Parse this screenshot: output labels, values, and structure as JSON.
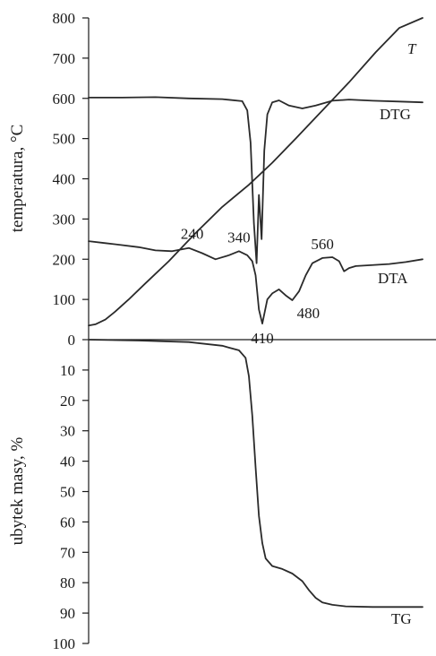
{
  "chart_data": [
    {
      "type": "line",
      "panel": "top",
      "ylabel": "temperatura, °C",
      "xlabel": "",
      "title": "",
      "ylim": [
        0,
        800
      ],
      "yticks": [
        0,
        100,
        200,
        300,
        400,
        500,
        600,
        700,
        800
      ],
      "x_axis_ticks_shown": false,
      "grid": false,
      "series": [
        {
          "name": "T",
          "label_italic": true,
          "x": [
            0,
            2,
            5,
            8,
            12,
            17,
            24,
            32,
            40,
            48,
            55,
            62,
            70,
            78,
            86,
            93,
            100
          ],
          "values": [
            35,
            38,
            50,
            70,
            100,
            140,
            195,
            265,
            330,
            385,
            440,
            500,
            570,
            640,
            715,
            775,
            800
          ]
        },
        {
          "name": "DTG",
          "x": [
            0,
            10,
            20,
            30,
            40,
            46,
            47.5,
            48.5,
            49.5,
            50.3,
            51,
            51.8,
            52.6,
            53.5,
            55,
            57,
            60,
            64,
            68,
            73,
            78,
            85,
            93,
            100
          ],
          "values": [
            602,
            602,
            603,
            600,
            598,
            593,
            570,
            490,
            290,
            190,
            360,
            250,
            470,
            560,
            590,
            595,
            582,
            575,
            582,
            594,
            597,
            594,
            592,
            590
          ]
        },
        {
          "name": "DTA",
          "x": [
            0,
            5,
            10,
            15,
            20,
            25,
            30,
            34,
            38,
            42,
            45,
            47.5,
            49,
            50,
            51,
            52,
            53.5,
            55,
            57,
            59,
            61,
            63,
            65,
            67,
            70,
            73,
            75,
            76.5,
            78,
            80,
            84,
            90,
            95,
            100
          ],
          "values": [
            245,
            240,
            235,
            230,
            222,
            220,
            228,
            215,
            200,
            210,
            220,
            210,
            195,
            160,
            75,
            40,
            100,
            115,
            125,
            110,
            98,
            120,
            160,
            190,
            203,
            205,
            195,
            170,
            178,
            183,
            185,
            188,
            193,
            200
          ],
          "peak_labels": [
            {
              "text": "240",
              "x": 31,
              "y": 228
            },
            {
              "text": "340",
              "x": 45,
              "y": 220
            },
            {
              "text": "410",
              "x": 52,
              "y": 40
            },
            {
              "text": "480",
              "x": 61.5,
              "y": 98
            },
            {
              "text": "560",
              "x": 70,
              "y": 203
            }
          ]
        }
      ]
    },
    {
      "type": "line",
      "panel": "bottom",
      "ylabel": "ubytek masy, %",
      "xlabel": "",
      "title": "",
      "ylim": [
        100,
        0
      ],
      "yticks": [
        10,
        20,
        30,
        40,
        50,
        60,
        70,
        80,
        90,
        100
      ],
      "x_axis_ticks_shown": false,
      "grid": false,
      "series": [
        {
          "name": "TG",
          "x": [
            0,
            15,
            30,
            40,
            45,
            47,
            48,
            49,
            50,
            51,
            52,
            53,
            55,
            58,
            61,
            64,
            66,
            68,
            70,
            73,
            77,
            85,
            93,
            100
          ],
          "values": [
            0,
            0.3,
            0.8,
            2,
            3.5,
            6,
            12,
            25,
            42,
            58,
            67,
            72,
            74.5,
            75.5,
            77,
            79.5,
            82.5,
            85,
            86.5,
            87.3,
            87.8,
            88,
            88,
            88
          ]
        }
      ]
    }
  ]
}
